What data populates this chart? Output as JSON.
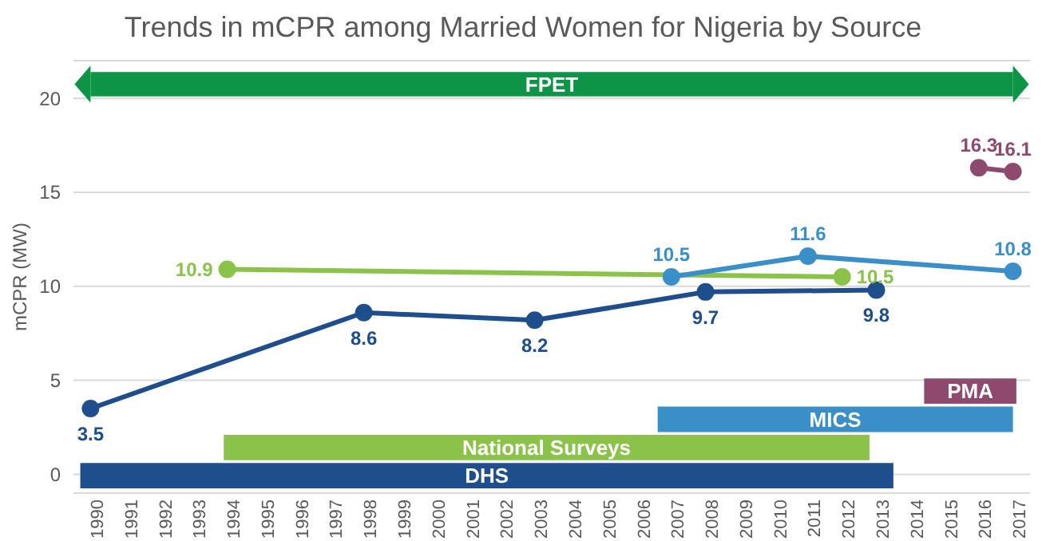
{
  "chart_data": {
    "type": "line",
    "title": "Trends in mCPR among Married Women for Nigeria by Source",
    "ylabel": "mCPR (MW)",
    "xlim": [
      1989.5,
      2017.5
    ],
    "xticks": [
      1990,
      1991,
      1992,
      1993,
      1994,
      1995,
      1996,
      1997,
      1998,
      1999,
      2000,
      2001,
      2002,
      2003,
      2004,
      2005,
      2006,
      2007,
      2008,
      2009,
      2010,
      2011,
      2012,
      2013,
      2014,
      2015,
      2016,
      2017
    ],
    "ylim": [
      -1,
      22
    ],
    "yticks": [
      0,
      5,
      10,
      15,
      20
    ],
    "grid": "y",
    "marker": "circle",
    "data_labels": true,
    "series": [
      {
        "color": "#1f4e8c",
        "x": [
          1990,
          1998,
          2003,
          2008,
          2013
        ],
        "values": [
          3.5,
          8.6,
          8.2,
          9.7,
          9.8
        ]
      },
      {
        "color": "#8bc34a",
        "x": [
          1994,
          2012
        ],
        "values": [
          10.9,
          10.5
        ]
      },
      {
        "color": "#3a8fc8",
        "x": [
          2007,
          2011,
          2017
        ],
        "values": [
          10.5,
          11.6,
          10.8
        ]
      },
      {
        "color": "#8e4a6e",
        "x": [
          2016,
          2017
        ],
        "values": [
          16.3,
          16.1
        ]
      }
    ],
    "bands": [
      {
        "axis": "x",
        "from": 1990,
        "to": 2017,
        "label": "FPET",
        "color": "#0e9446"
      },
      {
        "axis": "x",
        "from": 1989.7,
        "to": 2013.5,
        "label": "DHS",
        "color": "#1f4e8c"
      },
      {
        "axis": "x",
        "from": 1993.9,
        "to": 2012.8,
        "label": "National Surveys",
        "color": "#8bc34a"
      },
      {
        "axis": "x",
        "from": 2006.6,
        "to": 2017,
        "label": "MICS",
        "color": "#3a8fc8"
      },
      {
        "axis": "x",
        "from": 2014.4,
        "to": 2017.1,
        "label": "PMA",
        "color": "#8e4a6e"
      }
    ]
  }
}
